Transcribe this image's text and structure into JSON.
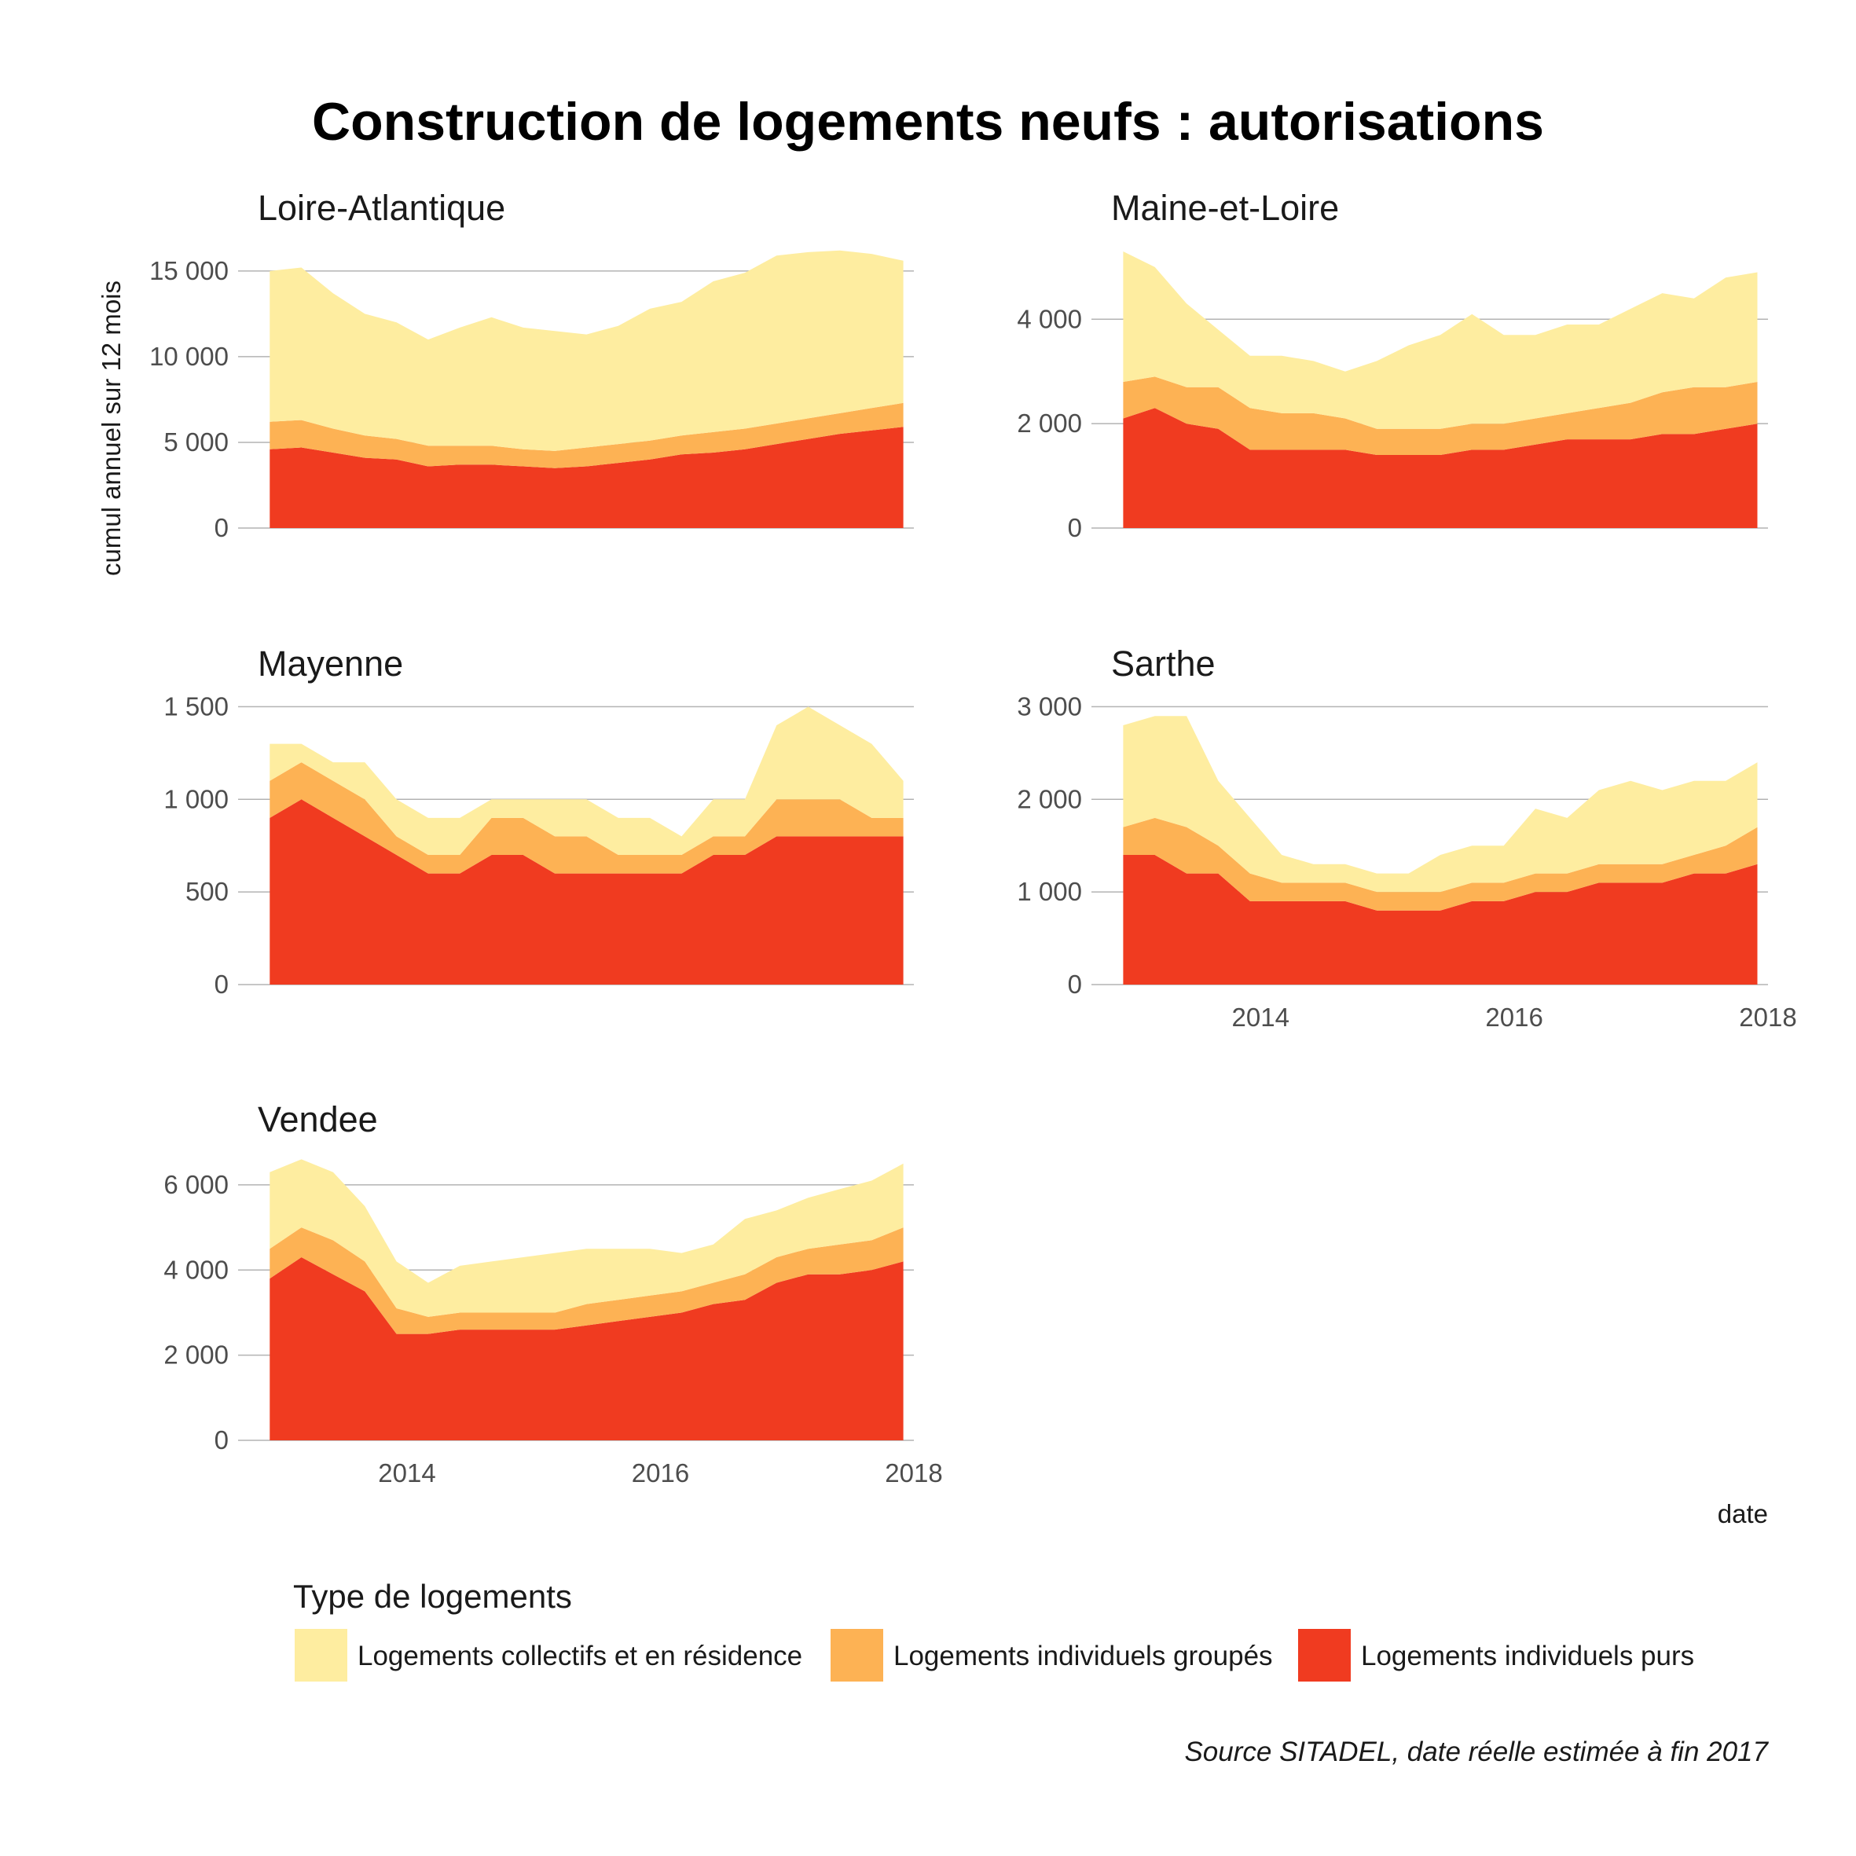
{
  "chart_data": {
    "type": "area",
    "stacked": true,
    "title": "Construction de logements neufs : autorisations",
    "ylabel": "cumul annuel sur 12 mois",
    "xlabel": "date",
    "caption": "Source SITADEL, date réelle estimée à fin 2017",
    "legend": {
      "title": "Type de logements",
      "position": "bottom",
      "entries": [
        {
          "key": "collectifs",
          "label": "Logements collectifs et en résidence",
          "color": "#FEEDA0"
        },
        {
          "key": "groupes",
          "label": "Logements individuels groupés",
          "color": "#FDB254"
        },
        {
          "key": "purs",
          "label": "Logements individuels purs",
          "color": "#F03B20"
        }
      ]
    },
    "x": [
      "2012-12",
      "2013-03",
      "2013-06",
      "2013-09",
      "2013-12",
      "2014-03",
      "2014-06",
      "2014-09",
      "2014-12",
      "2015-03",
      "2015-06",
      "2015-09",
      "2015-12",
      "2016-03",
      "2016-06",
      "2016-09",
      "2016-12",
      "2017-03",
      "2017-06",
      "2017-09",
      "2017-12"
    ],
    "x_ticks": [
      "2014",
      "2016",
      "2018"
    ],
    "x_range": [
      "2012-09",
      "2018-01"
    ],
    "grid": "horizontal",
    "facets": [
      {
        "name": "Loire-Atlantique",
        "y_ticks": [
          0,
          5000,
          10000,
          15000
        ],
        "y_tick_labels": [
          "0",
          "5 000",
          "10 000",
          "15 000"
        ],
        "ylim": [
          0,
          16600
        ],
        "show_x_ticks": false,
        "series": {
          "purs": [
            4600,
            4700,
            4400,
            4100,
            4000,
            3600,
            3700,
            3700,
            3600,
            3500,
            3600,
            3800,
            4000,
            4300,
            4400,
            4600,
            4900,
            5200,
            5500,
            5700,
            5900
          ],
          "groupes": [
            1600,
            1600,
            1400,
            1300,
            1200,
            1200,
            1100,
            1100,
            1000,
            1000,
            1100,
            1100,
            1100,
            1100,
            1200,
            1200,
            1200,
            1200,
            1200,
            1300,
            1400
          ],
          "collectifs": [
            8800,
            8900,
            7900,
            7100,
            6800,
            6200,
            6900,
            7500,
            7100,
            7000,
            6600,
            6900,
            7700,
            7800,
            8800,
            9100,
            9800,
            9700,
            9500,
            9000,
            8300
          ]
        }
      },
      {
        "name": "Maine-et-Loire",
        "y_ticks": [
          0,
          2000,
          4000
        ],
        "y_tick_labels": [
          "0",
          "2 000",
          "4 000"
        ],
        "ylim": [
          0,
          5450
        ],
        "show_x_ticks": false,
        "series": {
          "purs": [
            2100,
            2300,
            2000,
            1900,
            1500,
            1500,
            1500,
            1500,
            1400,
            1400,
            1400,
            1500,
            1500,
            1600,
            1700,
            1700,
            1700,
            1800,
            1800,
            1900,
            2000
          ],
          "groupes": [
            700,
            600,
            700,
            800,
            800,
            700,
            700,
            600,
            500,
            500,
            500,
            500,
            500,
            500,
            500,
            600,
            700,
            800,
            900,
            800,
            800
          ],
          "collectifs": [
            2500,
            2100,
            1600,
            1100,
            1000,
            1100,
            1000,
            900,
            1300,
            1600,
            1800,
            2100,
            1700,
            1600,
            1700,
            1600,
            1800,
            1900,
            1700,
            2100,
            2100
          ]
        }
      },
      {
        "name": "Mayenne",
        "y_ticks": [
          0,
          500,
          1000,
          1500
        ],
        "y_tick_labels": [
          "0",
          "500",
          "1 000",
          "1 500"
        ],
        "ylim": [
          0,
          1540
        ],
        "show_x_ticks": false,
        "series": {
          "purs": [
            900,
            1000,
            900,
            800,
            700,
            600,
            600,
            700,
            700,
            600,
            600,
            600,
            600,
            600,
            700,
            700,
            800,
            800,
            800,
            800,
            800
          ],
          "groupes": [
            200,
            200,
            200,
            200,
            100,
            100,
            100,
            200,
            200,
            200,
            200,
            100,
            100,
            100,
            100,
            100,
            200,
            200,
            200,
            100,
            100
          ],
          "collectifs": [
            200,
            100,
            100,
            200,
            200,
            200,
            200,
            100,
            100,
            200,
            200,
            200,
            200,
            100,
            200,
            200,
            400,
            500,
            400,
            400,
            200
          ]
        }
      },
      {
        "name": "Sarthe",
        "y_ticks": [
          0,
          1000,
          2000,
          3000
        ],
        "y_tick_labels": [
          "0",
          "1 000",
          "2 000",
          "3 000"
        ],
        "ylim": [
          0,
          3080
        ],
        "show_x_ticks": true,
        "series": {
          "purs": [
            1400,
            1400,
            1200,
            1200,
            900,
            900,
            900,
            900,
            800,
            800,
            800,
            900,
            900,
            1000,
            1000,
            1100,
            1100,
            1100,
            1200,
            1200,
            1300
          ],
          "groupes": [
            300,
            400,
            500,
            300,
            300,
            200,
            200,
            200,
            200,
            200,
            200,
            200,
            200,
            200,
            200,
            200,
            200,
            200,
            200,
            300,
            400
          ],
          "collectifs": [
            1100,
            1100,
            1200,
            700,
            600,
            300,
            200,
            200,
            200,
            200,
            400,
            400,
            400,
            700,
            600,
            800,
            900,
            800,
            800,
            700,
            700
          ]
        }
      },
      {
        "name": "Vendee",
        "y_ticks": [
          0,
          2000,
          4000,
          6000
        ],
        "y_tick_labels": [
          "0",
          "2 000",
          "4 000",
          "6 000"
        ],
        "ylim": [
          0,
          6700
        ],
        "show_x_ticks": true,
        "series": {
          "purs": [
            3800,
            4300,
            3900,
            3500,
            2500,
            2500,
            2600,
            2600,
            2600,
            2600,
            2700,
            2800,
            2900,
            3000,
            3200,
            3300,
            3700,
            3900,
            3900,
            4000,
            4200
          ],
          "groupes": [
            700,
            700,
            800,
            700,
            600,
            400,
            400,
            400,
            400,
            400,
            500,
            500,
            500,
            500,
            500,
            600,
            600,
            600,
            700,
            700,
            800
          ],
          "collectifs": [
            1800,
            1600,
            1600,
            1300,
            1100,
            800,
            1100,
            1200,
            1300,
            1400,
            1300,
            1200,
            1100,
            900,
            900,
            1300,
            1100,
            1200,
            1300,
            1400,
            1500
          ]
        }
      }
    ]
  }
}
